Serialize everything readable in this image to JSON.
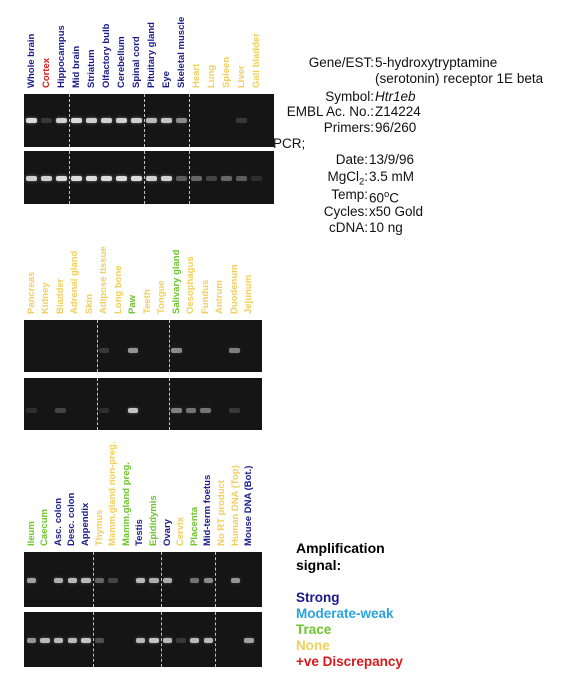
{
  "colors": {
    "strong": "#1a1a8c",
    "moderate_weak": "#29a3e0",
    "trace": "#6cc52a",
    "none": "#f2cf5b",
    "discrepancy": "#d61a1a"
  },
  "panel1": {
    "labels": [
      {
        "text": "Whole brain",
        "level": "strong"
      },
      {
        "text": "Cortex",
        "level": "discrepancy"
      },
      {
        "text": "Hippocampus",
        "level": "strong"
      },
      {
        "text": "Mid brain",
        "level": "strong"
      },
      {
        "text": "Striatum",
        "level": "strong"
      },
      {
        "text": "Olfactory bulb",
        "level": "strong"
      },
      {
        "text": "Cerebellum",
        "level": "strong"
      },
      {
        "text": "Spinal cord",
        "level": "strong"
      },
      {
        "text": "Pituitary gland",
        "level": "strong"
      },
      {
        "text": "Eye",
        "level": "strong"
      },
      {
        "text": "Skeletal muscle",
        "level": "strong"
      },
      {
        "text": "Heart",
        "level": "none"
      },
      {
        "text": "Lung",
        "level": "none"
      },
      {
        "text": "Spleen",
        "level": "none"
      },
      {
        "text": "Liver",
        "level": "none"
      },
      {
        "text": "Gall bladder",
        "level": "none"
      }
    ],
    "top_band_intensity": [
      0.85,
      0.15,
      0.8,
      0.85,
      0.8,
      0.8,
      0.8,
      0.8,
      0.7,
      0.75,
      0.5,
      0,
      0,
      0,
      0.15,
      0
    ],
    "bottom_band_intensity": [
      0.8,
      0.8,
      0.85,
      0.85,
      0.85,
      0.85,
      0.85,
      0.85,
      0.8,
      0.8,
      0.3,
      0.35,
      0.2,
      0.35,
      0.3,
      0.1
    ]
  },
  "panel2": {
    "labels": [
      {
        "text": "Pancreas",
        "level": "none"
      },
      {
        "text": "Kidney",
        "level": "none"
      },
      {
        "text": "Bladder",
        "level": "none"
      },
      {
        "text": "Adrenal gland",
        "level": "none"
      },
      {
        "text": "Skin",
        "level": "none"
      },
      {
        "text": "Adipose tissue",
        "level": "none"
      },
      {
        "text": "Long bone",
        "level": "none"
      },
      {
        "text": "Paw",
        "level": "trace"
      },
      {
        "text": "Teeth",
        "level": "none"
      },
      {
        "text": "Tongue",
        "level": "none"
      },
      {
        "text": "Salivary gland",
        "level": "trace"
      },
      {
        "text": "Oesophagus",
        "level": "none"
      },
      {
        "text": "Fundus",
        "level": "none"
      },
      {
        "text": "Antrum",
        "level": "none"
      },
      {
        "text": "Duodenum",
        "level": "none"
      },
      {
        "text": "Jejunum",
        "level": "none"
      }
    ],
    "top_band_intensity": [
      0,
      0,
      0,
      0,
      0,
      0.15,
      0,
      0.55,
      0,
      0,
      0.5,
      0,
      0,
      0,
      0.45,
      0
    ],
    "bottom_band_intensity": [
      0.1,
      0,
      0.2,
      0,
      0,
      0.1,
      0,
      0.75,
      0,
      0,
      0.45,
      0.4,
      0.4,
      0,
      0.15,
      0
    ]
  },
  "panel3": {
    "labels": [
      {
        "text": "Ileum",
        "level": "trace"
      },
      {
        "text": "Caecum",
        "level": "trace"
      },
      {
        "text": "Asc. colon",
        "level": "strong"
      },
      {
        "text": "Desc. colon",
        "level": "strong"
      },
      {
        "text": "Appendix",
        "level": "strong"
      },
      {
        "text": "Thymus",
        "level": "none"
      },
      {
        "text": "Mamm.gland non-preg.",
        "level": "none"
      },
      {
        "text": "Mamm.gland preg.",
        "level": "trace"
      },
      {
        "text": "Testis",
        "level": "strong"
      },
      {
        "text": "Epididymis",
        "level": "trace"
      },
      {
        "text": "Ovary",
        "level": "strong"
      },
      {
        "text": "Cervix",
        "level": "none"
      },
      {
        "text": "Placenta",
        "level": "trace"
      },
      {
        "text": "Mid-term foetus",
        "level": "strong"
      },
      {
        "text": "No RT product",
        "level": "none"
      },
      {
        "text": "Human DNA (Top)",
        "level": "none"
      },
      {
        "text": "Mouse DNA (Bot.)",
        "level": "strong"
      }
    ],
    "top_band_intensity": [
      0.6,
      0,
      0.65,
      0.7,
      0.7,
      0.35,
      0.2,
      0,
      0.7,
      0.65,
      0.65,
      0,
      0.4,
      0.5,
      0,
      0.55,
      0
    ],
    "bottom_band_intensity": [
      0.55,
      0.7,
      0.7,
      0.7,
      0.75,
      0.25,
      0,
      0,
      0.7,
      0.75,
      0.7,
      0.15,
      0.7,
      0.7,
      0,
      0,
      0.6
    ]
  },
  "info": {
    "rows": [
      {
        "key": "Gene/EST:",
        "value": "5-hydroxytryptamine"
      },
      {
        "key": "",
        "value": "(serotonin) receptor 1E beta"
      },
      {
        "key": "Symbol:",
        "value": "Htr1eb"
      },
      {
        "key": "EMBL Ac. No.:",
        "value": "Z14224"
      },
      {
        "key": "Primers:",
        "value": "96/260"
      }
    ],
    "pcr_label": "PCR;",
    "pcr_rows": [
      {
        "key": "Date:",
        "value": "13/9/96"
      },
      {
        "key": "MgCl2:",
        "value": "3.5 mM"
      },
      {
        "key": "Temp:",
        "value": "60oC"
      },
      {
        "key": "Cycles:",
        "value": "x50 Gold"
      },
      {
        "key": "cDNA:",
        "value": "10 ng"
      }
    ]
  },
  "legend": {
    "title_line1": "Amplification",
    "title_line2": "signal:",
    "items": [
      {
        "text": "Strong",
        "level": "strong"
      },
      {
        "text": "Moderate-weak",
        "level": "moderate_weak"
      },
      {
        "text": "Trace",
        "level": "trace"
      },
      {
        "text": "None",
        "level": "none"
      },
      {
        "text": "+ve Discrepancy",
        "level": "discrepancy"
      }
    ]
  }
}
